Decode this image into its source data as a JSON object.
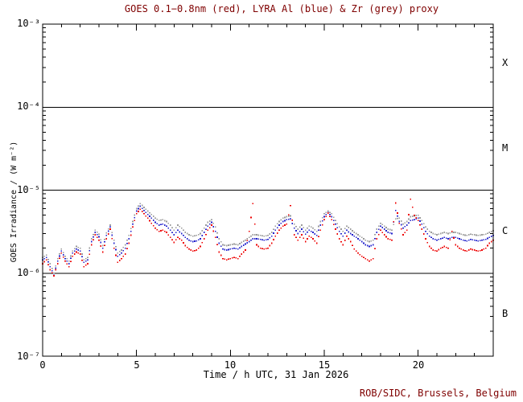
{
  "title": "GOES 0.1−0.8nm (red), LYRA Al (blue) & Zr (grey) proxy",
  "footer": {
    "credit": "ROB/SIDC, Brussels, Belgium"
  },
  "axes": {
    "x": {
      "label": "Time / h UTC, 31 Jan 2026",
      "tick_labels": [
        "0",
        "5",
        "10",
        "15",
        "20"
      ],
      "min": 0,
      "max": 24,
      "major_tick_interval": 5,
      "minor_tick_interval": 1
    },
    "y": {
      "label": "GOES Irradiance / (W m⁻²)",
      "tick_labels": [
        "10⁻³",
        "10⁻⁴",
        "10⁻⁵",
        "10⁻⁶",
        "10⁻⁷"
      ],
      "scale": "log",
      "min": 1e-07,
      "max": 0.001
    },
    "right": {
      "flare_class_labels": [
        "X",
        "M",
        "C",
        "B"
      ]
    }
  },
  "class_boundaries_W_m2": [
    0.0001,
    1e-05,
    1e-06
  ],
  "colors": {
    "background": "#ffffff",
    "axis": "#000000",
    "title_text": "#7f0000",
    "footer_text": "#7f0000",
    "goes_red": "#ee0000",
    "lyra_al_blue": "#2222cc",
    "lyra_zr_grey": "#9a9a9a"
  },
  "chart_data": {
    "type": "scatter",
    "title": "GOES 0.1−0.8nm (red), LYRA Al (blue) & Zr (grey) proxy",
    "xlabel": "Time / h UTC, 31 Jan 2026",
    "ylabel": "GOES Irradiance / (W m⁻²)",
    "xlim": [
      0,
      24
    ],
    "ylim": [
      1e-07,
      0.001
    ],
    "yscale": "log",
    "grid": "off",
    "legend": "none (series named in title)",
    "x_unit": "hours UTC, 31 Jan 2026",
    "y_unit": "W m⁻²",
    "values_unit_note": "series values are in microwatts per square metre (1e-6 W m⁻²)",
    "x_hours": [
      0,
      0.2,
      0.4,
      0.6,
      0.8,
      1,
      1.2,
      1.4,
      1.6,
      1.8,
      2,
      2.2,
      2.4,
      2.6,
      2.8,
      3,
      3.2,
      3.4,
      3.6,
      3.8,
      4,
      4.2,
      4.4,
      4.6,
      4.8,
      5,
      5.2,
      5.4,
      5.6,
      5.8,
      6,
      6.2,
      6.4,
      6.6,
      6.8,
      7,
      7.2,
      7.4,
      7.6,
      7.8,
      8,
      8.2,
      8.4,
      8.6,
      8.8,
      9,
      9.2,
      9.4,
      9.6,
      9.8,
      10,
      10.2,
      10.4,
      10.6,
      10.8,
      11,
      11.2,
      11.4,
      11.6,
      11.8,
      12,
      12.2,
      12.4,
      12.6,
      12.8,
      13,
      13.2,
      13.4,
      13.6,
      13.8,
      14,
      14.2,
      14.4,
      14.6,
      14.8,
      15,
      15.2,
      15.4,
      15.6,
      15.8,
      16,
      16.2,
      16.4,
      16.6,
      16.8,
      17,
      17.2,
      17.4,
      17.6,
      17.8,
      18,
      18.2,
      18.4,
      18.6,
      18.8,
      19,
      19.2,
      19.4,
      19.6,
      19.8,
      20,
      20.2,
      20.4,
      20.6,
      20.8,
      21,
      21.2,
      21.4,
      21.6,
      21.8,
      22,
      22.2,
      22.4,
      22.6,
      22.8,
      23,
      23.2,
      23.4,
      23.6,
      23.8,
      24
    ],
    "series": [
      {
        "name": "GOES 0.1−0.8nm",
        "color": "#ee0000",
        "values_uW_per_m2": [
          1.3,
          1.45,
          1.1,
          0.93,
          1.3,
          1.75,
          1.4,
          1.2,
          1.6,
          1.8,
          1.7,
          1.2,
          1.3,
          2.2,
          2.9,
          2.5,
          1.8,
          2.6,
          3.4,
          2.0,
          1.35,
          1.5,
          1.7,
          2.3,
          3.6,
          5.2,
          5.9,
          5.2,
          4.6,
          4.0,
          3.5,
          3.2,
          3.3,
          3.1,
          2.7,
          2.35,
          2.7,
          2.5,
          2.15,
          1.95,
          1.85,
          1.9,
          2.1,
          2.6,
          3.3,
          3.8,
          2.7,
          1.8,
          1.5,
          1.45,
          1.5,
          1.55,
          1.5,
          1.7,
          1.9,
          3.2,
          6.9,
          2.2,
          2.0,
          1.95,
          2.0,
          2.3,
          2.8,
          3.3,
          3.7,
          3.9,
          6.5,
          2.9,
          2.5,
          2.9,
          2.4,
          2.8,
          2.6,
          2.3,
          3.3,
          4.4,
          5.3,
          4.4,
          3.4,
          2.6,
          2.2,
          2.8,
          2.4,
          1.95,
          1.75,
          1.6,
          1.5,
          1.4,
          1.5,
          2.6,
          3.3,
          2.9,
          2.6,
          2.5,
          7.0,
          4.0,
          2.9,
          3.3,
          7.8,
          5.0,
          4.3,
          3.4,
          2.6,
          2.1,
          1.9,
          1.85,
          2.0,
          2.1,
          2.0,
          3.2,
          2.2,
          2.0,
          1.9,
          1.85,
          1.95,
          1.9,
          1.85,
          1.9,
          2.0,
          2.3,
          2.5
        ]
      },
      {
        "name": "LYRA Al proxy",
        "color": "#2222cc",
        "values_uW_per_m2": [
          1.45,
          1.55,
          1.2,
          0.95,
          1.4,
          1.85,
          1.5,
          1.3,
          1.75,
          1.95,
          1.85,
          1.35,
          1.45,
          2.4,
          3.1,
          2.75,
          2.0,
          2.85,
          3.6,
          2.3,
          1.6,
          1.75,
          2.0,
          2.6,
          3.9,
          5.6,
          6.4,
          5.7,
          5.1,
          4.6,
          4.1,
          3.8,
          3.9,
          3.7,
          3.3,
          2.9,
          3.3,
          3.0,
          2.7,
          2.5,
          2.4,
          2.45,
          2.6,
          3.1,
          3.7,
          4.1,
          3.2,
          2.3,
          1.95,
          1.9,
          1.95,
          2.0,
          1.95,
          2.1,
          2.25,
          2.4,
          2.6,
          2.6,
          2.55,
          2.5,
          2.55,
          2.8,
          3.3,
          3.8,
          4.2,
          4.4,
          4.5,
          3.5,
          3.0,
          3.4,
          2.95,
          3.3,
          3.1,
          2.85,
          3.8,
          4.8,
          5.4,
          4.8,
          3.9,
          3.2,
          2.8,
          3.3,
          3.0,
          2.8,
          2.6,
          2.4,
          2.2,
          2.1,
          2.2,
          3.1,
          3.7,
          3.4,
          3.1,
          3.0,
          5.7,
          4.2,
          3.5,
          3.8,
          4.3,
          4.4,
          4.6,
          3.9,
          3.2,
          2.8,
          2.6,
          2.5,
          2.6,
          2.7,
          2.6,
          2.7,
          2.7,
          2.6,
          2.5,
          2.45,
          2.55,
          2.5,
          2.45,
          2.5,
          2.55,
          2.7,
          2.85
        ]
      },
      {
        "name": "LYRA Zr proxy",
        "color": "#9a9a9a",
        "values_uW_per_m2": [
          1.55,
          1.65,
          1.3,
          1.0,
          1.5,
          1.95,
          1.6,
          1.4,
          1.85,
          2.1,
          2.0,
          1.45,
          1.55,
          2.6,
          3.3,
          2.95,
          2.15,
          3.05,
          3.8,
          2.5,
          1.75,
          1.9,
          2.2,
          2.85,
          4.2,
          6.0,
          6.9,
          6.2,
          5.6,
          5.1,
          4.6,
          4.3,
          4.4,
          4.2,
          3.8,
          3.3,
          3.8,
          3.5,
          3.1,
          2.9,
          2.8,
          2.85,
          3.0,
          3.5,
          4.1,
          4.4,
          3.6,
          2.6,
          2.2,
          2.15,
          2.2,
          2.25,
          2.2,
          2.35,
          2.5,
          2.7,
          2.9,
          2.9,
          2.85,
          2.8,
          2.85,
          3.1,
          3.7,
          4.2,
          4.6,
          4.8,
          4.9,
          3.9,
          3.4,
          3.8,
          3.3,
          3.7,
          3.5,
          3.2,
          4.2,
          5.2,
          5.6,
          5.2,
          4.3,
          3.6,
          3.2,
          3.7,
          3.4,
          3.1,
          2.9,
          2.7,
          2.5,
          2.4,
          2.5,
          3.4,
          4.0,
          3.7,
          3.4,
          3.3,
          4.5,
          4.6,
          3.9,
          4.2,
          4.8,
          4.9,
          5.0,
          4.3,
          3.6,
          3.2,
          3.0,
          2.9,
          3.0,
          3.1,
          3.0,
          3.1,
          3.1,
          3.0,
          2.9,
          2.85,
          2.95,
          2.9,
          2.85,
          2.9,
          2.95,
          3.1,
          3.25
        ]
      }
    ]
  }
}
